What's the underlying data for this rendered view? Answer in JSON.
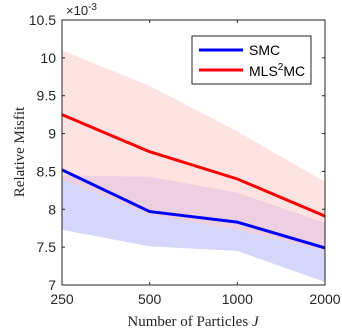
{
  "chart_data": {
    "type": "line",
    "x": [
      250,
      500,
      1000,
      2000
    ],
    "x_tick_labels": [
      "250",
      "500",
      "1000",
      "2000"
    ],
    "x_scale": "log",
    "xlim": [
      250,
      2000
    ],
    "ylim": [
      0.007,
      0.0105
    ],
    "y_ticks": [
      0.007,
      0.0075,
      0.008,
      0.0085,
      0.009,
      0.0095,
      0.01,
      0.0105
    ],
    "y_tick_labels": [
      "7",
      "7.5",
      "8",
      "8.5",
      "9",
      "9.5",
      "10",
      "10.5"
    ],
    "y_exponent_base": "×10",
    "y_exponent_power": "-3",
    "xlabel": "Number of Particles ",
    "xlabel_var": "J",
    "ylabel": "Relative Misfit",
    "grid": false,
    "legend_position": "top-right",
    "series": [
      {
        "name": "SMC",
        "color": "#0000ff",
        "band_color": "#b4b4f5",
        "values": [
          0.00852,
          0.00797,
          0.00783,
          0.00749
        ],
        "upper": [
          0.00845,
          0.00843,
          0.00822,
          0.00782
        ],
        "lower": [
          0.00773,
          0.00751,
          0.00745,
          0.00704
        ]
      },
      {
        "name_base": "MLS",
        "name_sup": "2",
        "name_tail": "MC",
        "color": "#ff0000",
        "band_color": "#ffcccc",
        "values": [
          0.00925,
          0.00876,
          0.0084,
          0.00791
        ],
        "upper": [
          0.0101,
          0.00963,
          0.00903,
          0.00836
        ],
        "lower": [
          0.0084,
          0.00793,
          0.00773,
          0.00745
        ]
      }
    ]
  }
}
